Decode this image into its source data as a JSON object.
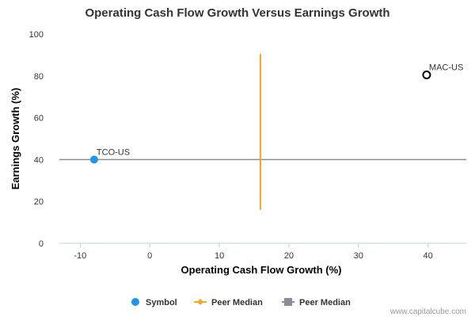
{
  "chart_data": {
    "type": "scatter",
    "title": "Operating Cash Flow Growth Versus Earnings Growth",
    "xlabel": "Operating Cash Flow Growth (%)",
    "ylabel": "Earnings Growth (%)",
    "xlim": [
      -13,
      45.5
    ],
    "ylim": [
      0,
      100
    ],
    "x_ticks": [
      -10,
      0,
      10,
      20,
      30,
      40
    ],
    "y_ticks": [
      0,
      20,
      40,
      60,
      80,
      100
    ],
    "grid": false,
    "legend_position": "bottom",
    "points": [
      {
        "label": "TCO-US",
        "x": -8,
        "y": 40,
        "style": "symbol"
      },
      {
        "label": "MAC-US",
        "x": 39.8,
        "y": 80.5,
        "style": "peer"
      }
    ],
    "peer_median_x": {
      "value": 15.9,
      "y_range": [
        16,
        90.5
      ]
    },
    "peer_median_y": {
      "value": 40
    }
  },
  "legend": {
    "items": [
      {
        "label": "Symbol"
      },
      {
        "label": "Peer Median"
      },
      {
        "label": "Peer Median"
      }
    ]
  },
  "credit": "www.capitalcube.com",
  "colors": {
    "symbol": "#2196e6",
    "peer_median_x": "#f5a623",
    "peer_median_y": "#8a8d93",
    "axis": "#c0d0e0",
    "peer_point_stroke": "#000000"
  }
}
